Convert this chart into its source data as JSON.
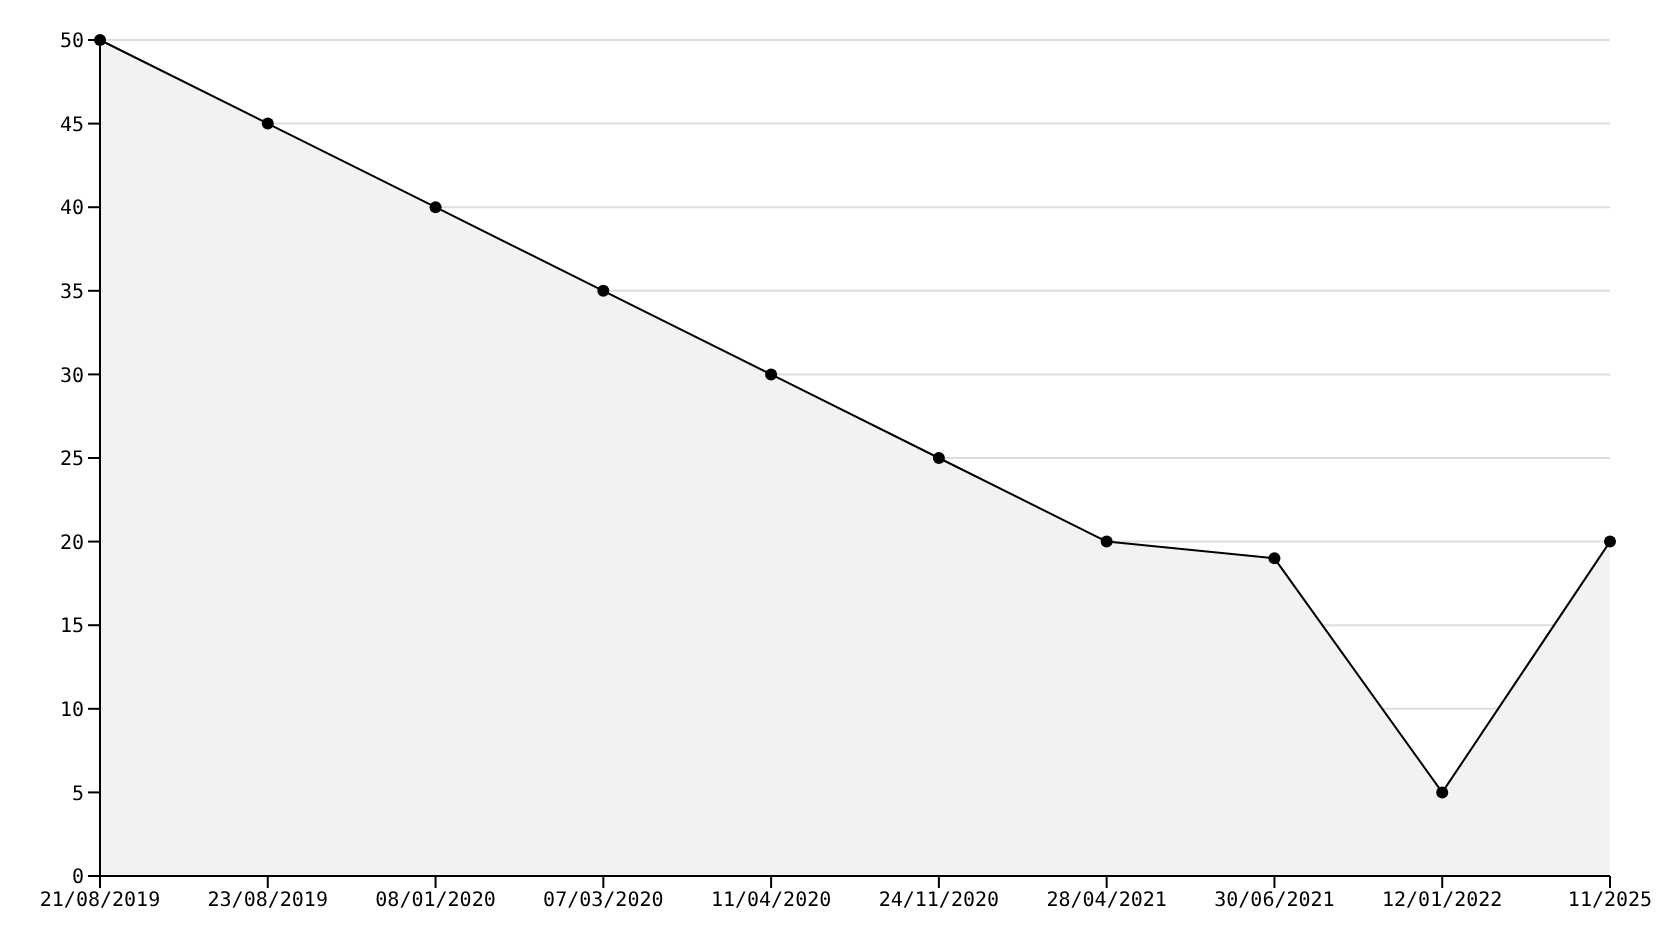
{
  "chart_data": {
    "type": "area",
    "categories": [
      "21/08/2019",
      "23/08/2019",
      "08/01/2020",
      "07/03/2020",
      "11/04/2020",
      "24/11/2020",
      "28/04/2021",
      "30/06/2021",
      "12/01/2022",
      "11/2025"
    ],
    "series": [
      {
        "color": "#000000",
        "values": [
          50,
          45,
          40,
          35,
          30,
          25,
          20,
          19,
          5,
          20
        ]
      }
    ],
    "ylim": [
      0,
      50
    ],
    "yticks": [
      0,
      5,
      10,
      15,
      20,
      25,
      30,
      35,
      40,
      45,
      50
    ],
    "grid": "y",
    "marker": "circle",
    "line_style": "solid",
    "legend": false
  }
}
